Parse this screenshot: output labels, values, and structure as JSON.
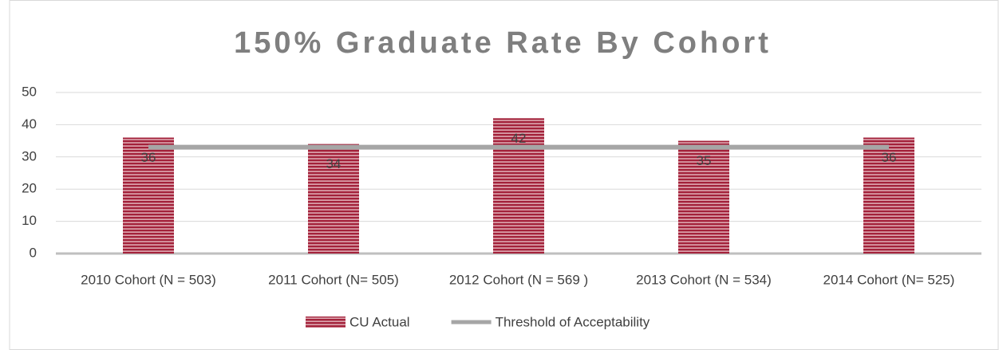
{
  "chart_data": {
    "type": "bar",
    "title": "150% Graduate Rate By Cohort",
    "categories": [
      "2010 Cohort (N = 503)",
      "2011 Cohort (N=  505)",
      "2012 Cohort (N = 569 )",
      "2013 Cohort (N = 534)",
      "2014 Cohort (N= 525)"
    ],
    "series": [
      {
        "name": "CU Actual",
        "type": "bar",
        "color": "#a3213a",
        "values": [
          36,
          34,
          42,
          35,
          36
        ]
      },
      {
        "name": "Threshold of Acceptability",
        "type": "line",
        "color": "#a6a6a6",
        "values": [
          33,
          33,
          33,
          33,
          33
        ]
      }
    ],
    "ylim": [
      0,
      50
    ],
    "yticks": [
      0,
      10,
      20,
      30,
      40,
      50
    ],
    "grid": true,
    "legend": "bottom"
  }
}
